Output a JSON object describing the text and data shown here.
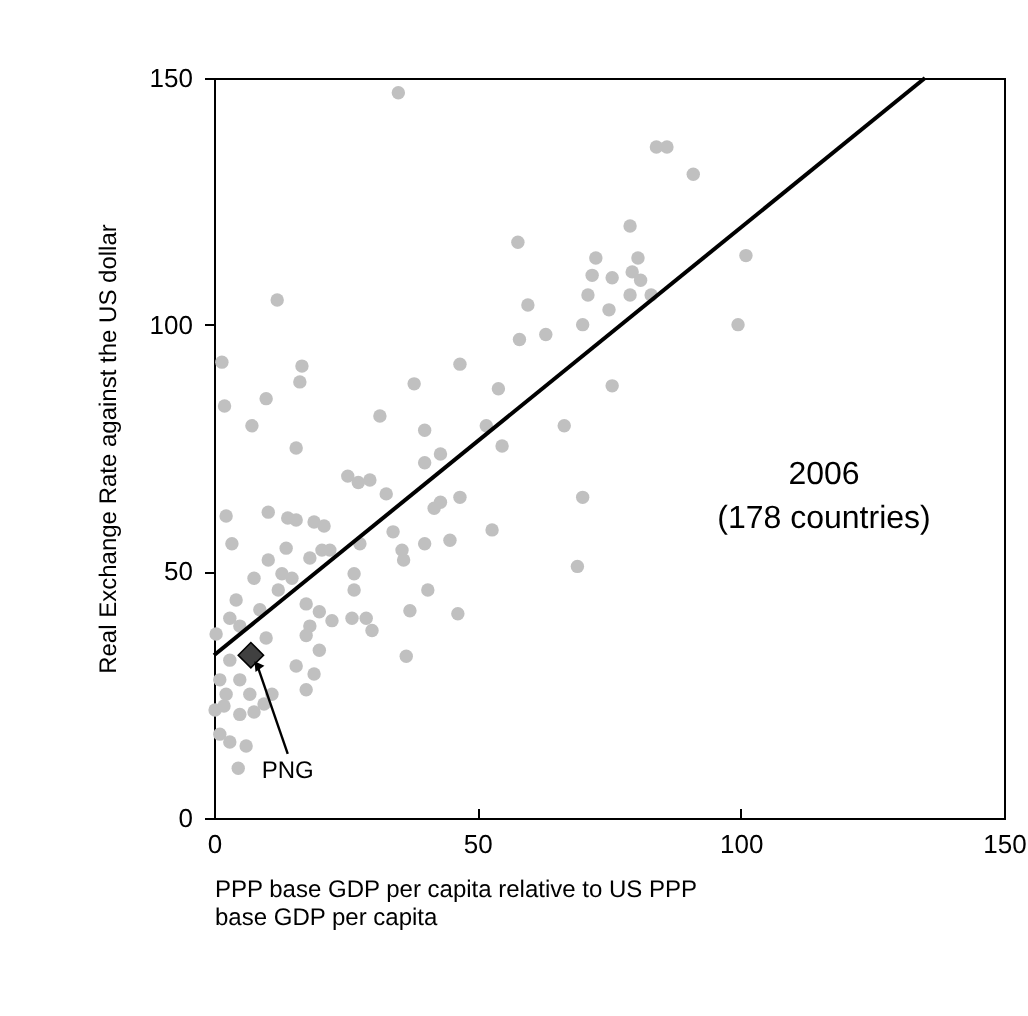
{
  "chart_data": {
    "type": "scatter",
    "xlabel": "PPP base GDP per capita relative to US PPP base GDP per capita",
    "ylabel": "Real Exchange Rate against the US dollar",
    "xlim": [
      0,
      150
    ],
    "ylim": [
      0,
      150
    ],
    "xticks": [
      0,
      50,
      100,
      150
    ],
    "yticks": [
      0,
      50,
      100,
      150
    ],
    "grid": false,
    "series": [
      {
        "type": "scatter",
        "color": "#c0c0c0",
        "marker": "circle",
        "x": [
          35,
          12,
          57.7,
          72.5,
          71.8,
          75.6,
          59.6,
          71,
          75,
          58,
          63,
          70,
          84,
          86,
          91,
          79,
          80.5,
          79.4,
          81,
          79,
          83,
          101,
          99.5,
          75.6,
          1.5,
          2,
          9.9,
          16.7,
          16.3,
          7.2,
          15.6,
          31.5,
          38,
          46.7,
          54,
          40,
          51.7,
          54.7,
          66.5,
          43,
          25.4,
          27.4,
          29.6,
          32.7,
          40,
          46.7,
          41.8,
          43,
          70,
          69,
          52.8,
          44.8,
          40,
          36,
          35.7,
          34,
          27.7,
          26.6,
          26.6,
          40.6,
          37.2,
          46.3,
          36.5,
          26.2,
          28.9,
          30,
          22.4,
          2.3,
          10.3,
          14,
          15.6,
          19,
          20.9,
          3.4,
          13.7,
          10.3,
          18.2,
          20.5,
          22,
          7.6,
          12.9,
          14.8,
          4.2,
          3,
          8.7,
          12.2,
          17.5,
          20,
          18.2,
          9.9,
          20,
          15.6,
          19,
          17.5,
          11,
          9.5,
          7.6,
          1.1,
          1.9,
          1.1,
          3,
          6.1,
          4.6,
          3,
          2.3,
          4.9,
          6.8,
          4.9,
          0.2,
          4.9,
          0.4,
          17.5
        ],
        "values": [
          147,
          105,
          116.7,
          113.5,
          110,
          109.5,
          104,
          106,
          103,
          97,
          98,
          100,
          136,
          136,
          130.5,
          120,
          113.5,
          110.7,
          109,
          106,
          106,
          114,
          100,
          87.6,
          92.4,
          83.5,
          85,
          91.6,
          88.4,
          79.5,
          75,
          81.5,
          88,
          92,
          87,
          78.6,
          79.5,
          75.4,
          79.5,
          73.8,
          69.3,
          68,
          68.5,
          65.7,
          72,
          65,
          62.8,
          64,
          65,
          51,
          58.4,
          56.3,
          55.6,
          52.3,
          54.3,
          58,
          55.6,
          49.5,
          46.2,
          46.2,
          42,
          41.4,
          32.8,
          40.5,
          40.5,
          38,
          40,
          61.2,
          62,
          60.8,
          60.4,
          60,
          59.2,
          55.6,
          54.7,
          52.3,
          52.7,
          54.3,
          54.3,
          48.6,
          49.5,
          48.6,
          44.2,
          40.5,
          42.2,
          46.2,
          43.4,
          41.8,
          38.9,
          36.5,
          34,
          30.8,
          29.2,
          26,
          25.1,
          23.1,
          21.5,
          28,
          22.7,
          17,
          15.4,
          14.6,
          10.1,
          32,
          25.1,
          28,
          25.1,
          21,
          21.9,
          38.9,
          37.3,
          37
        ]
      },
      {
        "type": "line",
        "color": "#000000",
        "x": [
          0,
          135
        ],
        "values": [
          33,
          150
        ]
      },
      {
        "type": "scatter",
        "color": "#404040",
        "marker": "diamond",
        "x": [
          7
        ],
        "values": [
          33
        ]
      }
    ],
    "annotations": [
      {
        "text": "PNG",
        "x": 7,
        "y": 33
      },
      "2006\n(178 countries)"
    ]
  }
}
